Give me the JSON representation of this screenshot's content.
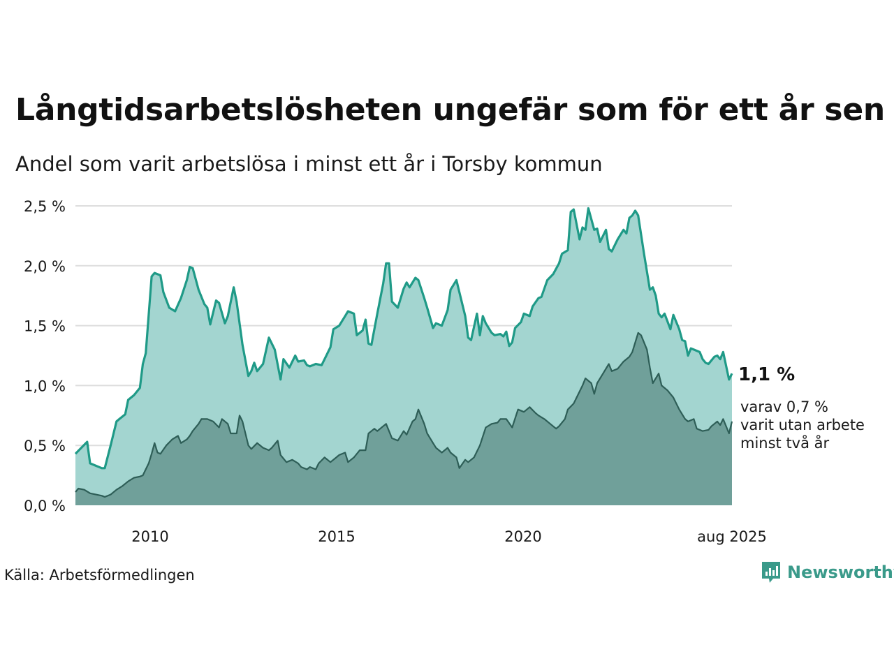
{
  "title": "Långtidsarbetslösheten ungefär som för ett år sen",
  "subtitle": "Andel som varit arbetslösa i minst ett år i Torsby kommun",
  "source": "Källa: Arbetsförmedlingen",
  "brand": "Newsworthy",
  "end_label": {
    "main": "1,1 %",
    "sub_lines": [
      "varav 0,7 %",
      "varit utan arbete",
      "minst två år"
    ]
  },
  "colors": {
    "total_line": "#1f9a87",
    "total_fill": "#a3d5d0",
    "long_line": "#2e5e57",
    "long_fill": "#70a09a",
    "grid": "#dddddd",
    "brand": "#3a9a8a"
  },
  "chart_data": {
    "type": "area",
    "x_start": "2008-01",
    "x_end": "2025-08",
    "y_unit": "%",
    "ylim": [
      0,
      2.5
    ],
    "y_ticks": [
      {
        "value": 0.0,
        "label": "0,0 %"
      },
      {
        "value": 0.5,
        "label": "0,5 %"
      },
      {
        "value": 1.0,
        "label": "1,0 %"
      },
      {
        "value": 1.5,
        "label": "1,5 %"
      },
      {
        "value": 2.0,
        "label": "2,0 %"
      },
      {
        "value": 2.5,
        "label": "2,5 %"
      }
    ],
    "x_ticks": [
      {
        "value": 2010,
        "label": "2010"
      },
      {
        "value": 2015,
        "label": "2015"
      },
      {
        "value": 2020,
        "label": "2020"
      },
      {
        "value": 2025.6,
        "label": "aug 2025"
      }
    ],
    "series": [
      {
        "key": "total",
        "points": [
          [
            2008.0,
            0.43
          ],
          [
            2008.2,
            0.48
          ],
          [
            2008.4,
            0.53
          ],
          [
            2008.5,
            0.35
          ],
          [
            2008.7,
            0.33
          ],
          [
            2008.9,
            0.31
          ],
          [
            2009.0,
            0.31
          ],
          [
            2009.2,
            0.5
          ],
          [
            2009.4,
            0.7
          ],
          [
            2009.5,
            0.72
          ],
          [
            2009.7,
            0.76
          ],
          [
            2009.8,
            0.88
          ],
          [
            2010.0,
            0.92
          ],
          [
            2010.2,
            0.98
          ],
          [
            2010.3,
            1.18
          ],
          [
            2010.4,
            1.27
          ],
          [
            2010.6,
            1.91
          ],
          [
            2010.7,
            1.94
          ],
          [
            2010.9,
            1.92
          ],
          [
            2011.0,
            1.78
          ],
          [
            2011.2,
            1.65
          ],
          [
            2011.4,
            1.62
          ],
          [
            2011.6,
            1.73
          ],
          [
            2011.8,
            1.88
          ],
          [
            2011.9,
            1.99
          ],
          [
            2012.0,
            1.98
          ],
          [
            2012.2,
            1.8
          ],
          [
            2012.4,
            1.68
          ],
          [
            2012.5,
            1.65
          ],
          [
            2012.6,
            1.51
          ],
          [
            2012.8,
            1.71
          ],
          [
            2012.9,
            1.69
          ],
          [
            2013.1,
            1.52
          ],
          [
            2013.2,
            1.58
          ],
          [
            2013.4,
            1.82
          ],
          [
            2013.5,
            1.7
          ],
          [
            2013.7,
            1.34
          ],
          [
            2013.9,
            1.08
          ],
          [
            2014.0,
            1.12
          ],
          [
            2014.1,
            1.19
          ],
          [
            2014.2,
            1.12
          ],
          [
            2014.4,
            1.18
          ],
          [
            2014.6,
            1.4
          ],
          [
            2014.8,
            1.3
          ],
          [
            2015.0,
            1.05
          ],
          [
            2015.1,
            1.22
          ],
          [
            2015.3,
            1.15
          ],
          [
            2015.5,
            1.25
          ],
          [
            2015.6,
            1.2
          ],
          [
            2015.8,
            1.21
          ],
          [
            2015.9,
            1.17
          ],
          [
            2016.0,
            1.16
          ],
          [
            2016.2,
            1.18
          ],
          [
            2016.4,
            1.17
          ],
          [
            2016.6,
            1.27
          ],
          [
            2016.7,
            1.32
          ],
          [
            2016.8,
            1.47
          ],
          [
            2017.0,
            1.5
          ],
          [
            2017.2,
            1.58
          ],
          [
            2017.3,
            1.62
          ],
          [
            2017.5,
            1.6
          ],
          [
            2017.6,
            1.42
          ],
          [
            2017.8,
            1.46
          ],
          [
            2017.9,
            1.55
          ],
          [
            2018.0,
            1.35
          ],
          [
            2018.1,
            1.34
          ],
          [
            2018.3,
            1.6
          ],
          [
            2018.5,
            1.85
          ],
          [
            2018.6,
            2.02
          ],
          [
            2018.7,
            2.02
          ],
          [
            2018.8,
            1.7
          ],
          [
            2019.0,
            1.65
          ],
          [
            2019.2,
            1.81
          ],
          [
            2019.3,
            1.86
          ],
          [
            2019.4,
            1.82
          ],
          [
            2019.6,
            1.9
          ],
          [
            2019.7,
            1.88
          ],
          [
            2019.9,
            1.73
          ],
          [
            2020.0,
            1.65
          ],
          [
            2020.2,
            1.48
          ],
          [
            2020.3,
            1.52
          ],
          [
            2020.5,
            1.5
          ],
          [
            2020.7,
            1.63
          ],
          [
            2020.8,
            1.8
          ],
          [
            2021.0,
            1.88
          ],
          [
            2021.1,
            1.78
          ],
          [
            2021.3,
            1.58
          ],
          [
            2021.4,
            1.4
          ],
          [
            2021.5,
            1.38
          ],
          [
            2021.7,
            1.6
          ],
          [
            2021.8,
            1.42
          ],
          [
            2021.9,
            1.58
          ],
          [
            2022.0,
            1.52
          ],
          [
            2022.2,
            1.44
          ],
          [
            2022.3,
            1.42
          ],
          [
            2022.5,
            1.43
          ],
          [
            2022.6,
            1.41
          ],
          [
            2022.7,
            1.45
          ],
          [
            2022.8,
            1.33
          ],
          [
            2022.9,
            1.36
          ],
          [
            2023.0,
            1.48
          ],
          [
            2023.2,
            1.53
          ],
          [
            2023.3,
            1.6
          ],
          [
            2023.5,
            1.58
          ],
          [
            2023.6,
            1.66
          ],
          [
            2023.8,
            1.73
          ],
          [
            2023.9,
            1.74
          ],
          [
            2024.1,
            1.88
          ],
          [
            2024.3,
            1.93
          ],
          [
            2024.5,
            2.02
          ],
          [
            2024.6,
            2.1
          ],
          [
            2024.8,
            2.13
          ],
          [
            2024.9,
            2.45
          ],
          [
            2025.0,
            2.47
          ],
          [
            2025.2,
            2.22
          ],
          [
            2025.3,
            2.32
          ],
          [
            2025.4,
            2.3
          ],
          [
            2025.5,
            2.48
          ],
          [
            2025.7,
            2.3
          ],
          [
            2025.8,
            2.31
          ],
          [
            2025.9,
            2.2
          ],
          [
            2026.0,
            2.25
          ],
          [
            2026.1,
            2.3
          ],
          [
            2026.2,
            2.14
          ],
          [
            2026.3,
            2.12
          ],
          [
            2026.5,
            2.22
          ],
          [
            2026.7,
            2.3
          ],
          [
            2026.8,
            2.27
          ],
          [
            2026.9,
            2.4
          ],
          [
            2027.0,
            2.42
          ],
          [
            2027.1,
            2.46
          ],
          [
            2027.2,
            2.42
          ],
          [
            2027.4,
            2.1
          ],
          [
            2027.6,
            1.8
          ],
          [
            2027.7,
            1.82
          ],
          [
            2027.8,
            1.75
          ],
          [
            2027.9,
            1.6
          ],
          [
            2028.0,
            1.57
          ],
          [
            2028.1,
            1.6
          ],
          [
            2028.3,
            1.47
          ],
          [
            2028.4,
            1.59
          ],
          [
            2028.6,
            1.47
          ],
          [
            2028.7,
            1.38
          ],
          [
            2028.8,
            1.37
          ],
          [
            2028.9,
            1.25
          ],
          [
            2029.0,
            1.31
          ],
          [
            2029.1,
            1.3
          ],
          [
            2029.3,
            1.28
          ],
          [
            2029.4,
            1.22
          ],
          [
            2029.5,
            1.19
          ],
          [
            2029.6,
            1.18
          ],
          [
            2029.8,
            1.24
          ],
          [
            2029.9,
            1.25
          ],
          [
            2030.0,
            1.22
          ],
          [
            2030.1,
            1.28
          ],
          [
            2030.3,
            1.05
          ],
          [
            2030.4,
            1.1
          ]
        ]
      },
      {
        "key": "long",
        "points": [
          [
            2008.0,
            0.11
          ],
          [
            2008.1,
            0.14
          ],
          [
            2008.3,
            0.13
          ],
          [
            2008.5,
            0.1
          ],
          [
            2008.7,
            0.09
          ],
          [
            2008.9,
            0.08
          ],
          [
            2009.0,
            0.07
          ],
          [
            2009.2,
            0.09
          ],
          [
            2009.4,
            0.13
          ],
          [
            2009.6,
            0.16
          ],
          [
            2009.8,
            0.2
          ],
          [
            2010.0,
            0.23
          ],
          [
            2010.2,
            0.24
          ],
          [
            2010.3,
            0.25
          ],
          [
            2010.5,
            0.35
          ],
          [
            2010.6,
            0.43
          ],
          [
            2010.7,
            0.52
          ],
          [
            2010.8,
            0.44
          ],
          [
            2010.9,
            0.43
          ],
          [
            2011.1,
            0.5
          ],
          [
            2011.3,
            0.55
          ],
          [
            2011.5,
            0.58
          ],
          [
            2011.6,
            0.52
          ],
          [
            2011.8,
            0.55
          ],
          [
            2011.9,
            0.58
          ],
          [
            2012.0,
            0.62
          ],
          [
            2012.2,
            0.68
          ],
          [
            2012.3,
            0.72
          ],
          [
            2012.5,
            0.72
          ],
          [
            2012.7,
            0.7
          ],
          [
            2012.9,
            0.65
          ],
          [
            2013.0,
            0.72
          ],
          [
            2013.2,
            0.68
          ],
          [
            2013.3,
            0.6
          ],
          [
            2013.5,
            0.6
          ],
          [
            2013.6,
            0.75
          ],
          [
            2013.7,
            0.7
          ],
          [
            2013.9,
            0.5
          ],
          [
            2014.0,
            0.47
          ],
          [
            2014.2,
            0.52
          ],
          [
            2014.4,
            0.48
          ],
          [
            2014.6,
            0.46
          ],
          [
            2014.7,
            0.48
          ],
          [
            2014.9,
            0.54
          ],
          [
            2015.0,
            0.42
          ],
          [
            2015.2,
            0.36
          ],
          [
            2015.4,
            0.38
          ],
          [
            2015.6,
            0.35
          ],
          [
            2015.7,
            0.32
          ],
          [
            2015.9,
            0.3
          ],
          [
            2016.0,
            0.32
          ],
          [
            2016.2,
            0.3
          ],
          [
            2016.3,
            0.35
          ],
          [
            2016.5,
            0.4
          ],
          [
            2016.7,
            0.36
          ],
          [
            2016.9,
            0.4
          ],
          [
            2017.0,
            0.42
          ],
          [
            2017.2,
            0.44
          ],
          [
            2017.3,
            0.36
          ],
          [
            2017.5,
            0.4
          ],
          [
            2017.7,
            0.46
          ],
          [
            2017.9,
            0.46
          ],
          [
            2018.0,
            0.6
          ],
          [
            2018.2,
            0.64
          ],
          [
            2018.3,
            0.62
          ],
          [
            2018.5,
            0.66
          ],
          [
            2018.6,
            0.68
          ],
          [
            2018.8,
            0.56
          ],
          [
            2019.0,
            0.54
          ],
          [
            2019.2,
            0.62
          ],
          [
            2019.3,
            0.59
          ],
          [
            2019.5,
            0.7
          ],
          [
            2019.6,
            0.72
          ],
          [
            2019.7,
            0.8
          ],
          [
            2019.9,
            0.68
          ],
          [
            2020.0,
            0.6
          ],
          [
            2020.2,
            0.52
          ],
          [
            2020.3,
            0.48
          ],
          [
            2020.5,
            0.44
          ],
          [
            2020.7,
            0.48
          ],
          [
            2020.8,
            0.44
          ],
          [
            2021.0,
            0.4
          ],
          [
            2021.1,
            0.31
          ],
          [
            2021.3,
            0.38
          ],
          [
            2021.4,
            0.36
          ],
          [
            2021.6,
            0.4
          ],
          [
            2021.8,
            0.5
          ],
          [
            2022.0,
            0.65
          ],
          [
            2022.2,
            0.68
          ],
          [
            2022.4,
            0.69
          ],
          [
            2022.5,
            0.72
          ],
          [
            2022.7,
            0.72
          ],
          [
            2022.9,
            0.65
          ],
          [
            2023.1,
            0.8
          ],
          [
            2023.3,
            0.78
          ],
          [
            2023.5,
            0.82
          ],
          [
            2023.7,
            0.77
          ],
          [
            2023.8,
            0.75
          ],
          [
            2024.0,
            0.72
          ],
          [
            2024.2,
            0.68
          ],
          [
            2024.4,
            0.64
          ],
          [
            2024.5,
            0.66
          ],
          [
            2024.7,
            0.72
          ],
          [
            2024.8,
            0.8
          ],
          [
            2025.0,
            0.85
          ],
          [
            2025.2,
            0.95
          ],
          [
            2025.3,
            1.0
          ],
          [
            2025.4,
            1.06
          ],
          [
            2025.6,
            1.02
          ],
          [
            2025.7,
            0.93
          ],
          [
            2025.8,
            1.02
          ],
          [
            2026.0,
            1.1
          ],
          [
            2026.2,
            1.18
          ],
          [
            2026.3,
            1.12
          ],
          [
            2026.5,
            1.14
          ],
          [
            2026.7,
            1.2
          ],
          [
            2026.9,
            1.24
          ],
          [
            2027.0,
            1.28
          ],
          [
            2027.2,
            1.44
          ],
          [
            2027.3,
            1.42
          ],
          [
            2027.5,
            1.3
          ],
          [
            2027.6,
            1.15
          ],
          [
            2027.7,
            1.02
          ],
          [
            2027.9,
            1.1
          ],
          [
            2028.0,
            1.0
          ],
          [
            2028.2,
            0.96
          ],
          [
            2028.4,
            0.9
          ],
          [
            2028.6,
            0.8
          ],
          [
            2028.8,
            0.72
          ],
          [
            2028.9,
            0.7
          ],
          [
            2029.1,
            0.72
          ],
          [
            2029.2,
            0.64
          ],
          [
            2029.4,
            0.62
          ],
          [
            2029.6,
            0.63
          ],
          [
            2029.7,
            0.66
          ],
          [
            2029.9,
            0.7
          ],
          [
            2030.0,
            0.67
          ],
          [
            2030.1,
            0.72
          ],
          [
            2030.3,
            0.6
          ],
          [
            2030.4,
            0.7
          ]
        ]
      }
    ]
  }
}
